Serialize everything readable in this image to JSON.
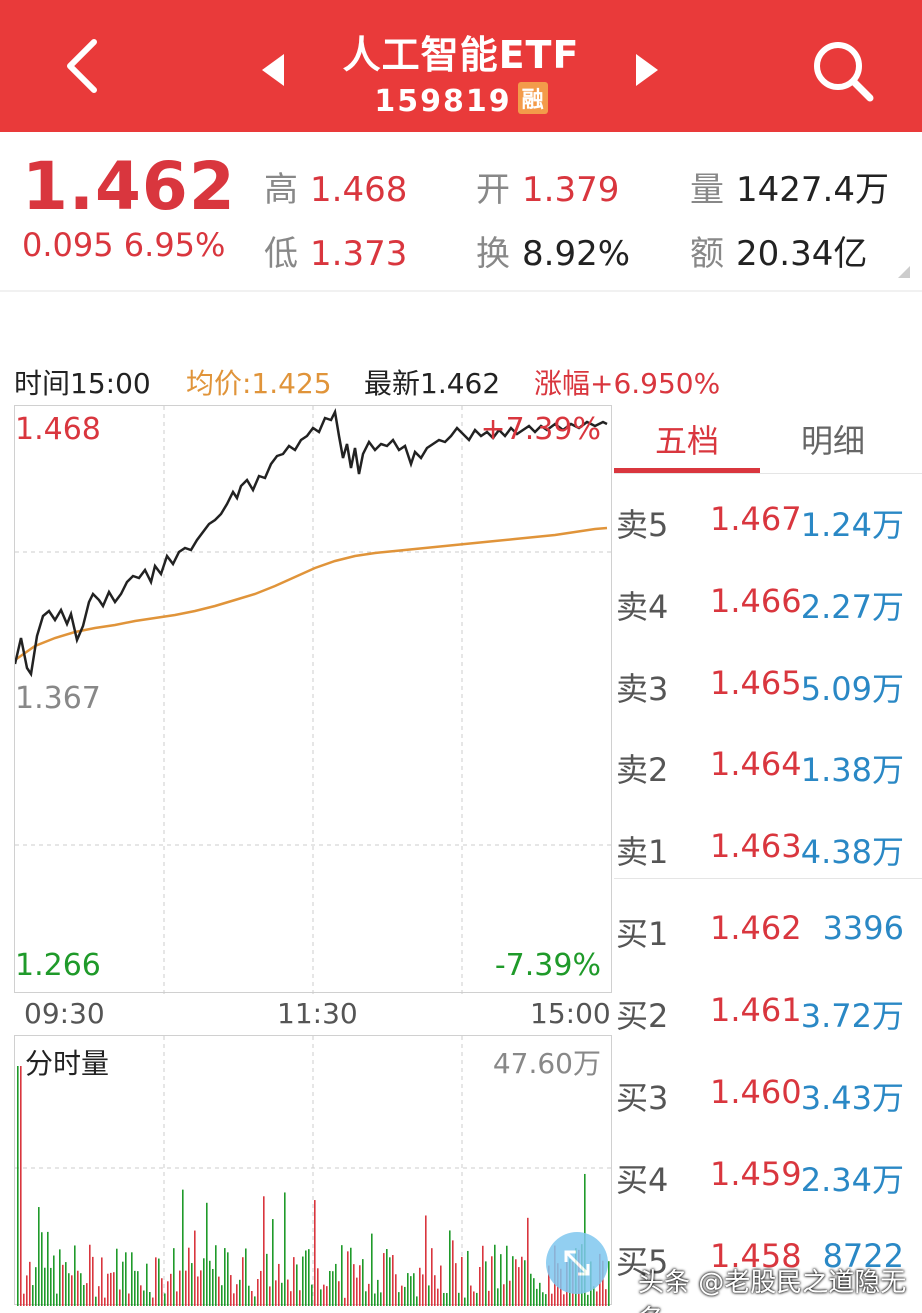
{
  "header": {
    "title": "人工智能ETF",
    "code": "159819",
    "margin_badge": "融"
  },
  "quote": {
    "price": "1.462",
    "change": "0.095 6.95%",
    "high_label": "高",
    "high": "1.468",
    "low_label": "低",
    "low": "1.373",
    "open_label": "开",
    "open": "1.379",
    "turnover_label": "换",
    "turnover": "8.92%",
    "volume_label": "量",
    "volume": "1427.4万",
    "amount_label": "额",
    "amount": "20.34亿"
  },
  "info": {
    "time": "时间15:00",
    "avg": "均价:1.425",
    "latest": "最新1.462",
    "pct": "涨幅+6.950%"
  },
  "chart": {
    "top_price": "1.468",
    "mid_price": "1.367",
    "bottom_price": "1.266",
    "top_pct": "+7.39%",
    "bottom_pct": "-7.39%",
    "time_start": "09:30",
    "time_mid": "11:30",
    "time_end": "15:00"
  },
  "volume": {
    "title": "分时量",
    "max": "47.60万"
  },
  "orderbook": {
    "tabs": [
      "五档",
      "明细"
    ],
    "rows": [
      {
        "name": "卖5",
        "price": "1.467",
        "vol": "1.24万"
      },
      {
        "name": "卖4",
        "price": "1.466",
        "vol": "2.27万"
      },
      {
        "name": "卖3",
        "price": "1.465",
        "vol": "5.09万"
      },
      {
        "name": "卖2",
        "price": "1.464",
        "vol": "1.38万"
      },
      {
        "name": "卖1",
        "price": "1.463",
        "vol": "4.38万"
      },
      {
        "name": "买1",
        "price": "1.462",
        "vol": "3396"
      },
      {
        "name": "买2",
        "price": "1.461",
        "vol": "3.72万"
      },
      {
        "name": "买3",
        "price": "1.460",
        "vol": "3.43万"
      },
      {
        "name": "买4",
        "price": "1.459",
        "vol": "2.34万"
      },
      {
        "name": "买5",
        "price": "1.458",
        "vol": "8722"
      }
    ]
  },
  "watermark": "头条 @老股民之道隐无名",
  "colors": {
    "brand": "#e93a3a",
    "up": "#d9363e",
    "down": "#1f9a2a",
    "avg_line": "#e0943a",
    "vol_blue": "#2a88c5"
  }
}
